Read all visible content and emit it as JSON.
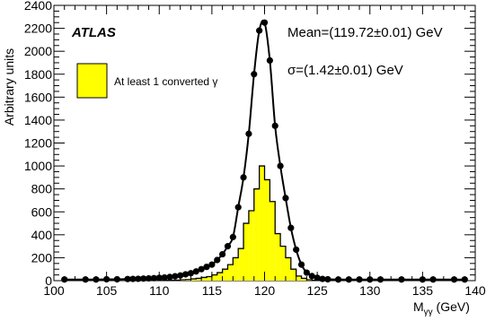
{
  "chart_data": {
    "type": "line",
    "xlabel": "M",
    "xlabel_sub": "γγ",
    "xlabel_unit": " (GeV)",
    "ylabel": "Arbitrary units",
    "xlim": [
      100,
      140
    ],
    "ylim": [
      0,
      2400
    ],
    "x_major_ticks": [
      100,
      105,
      110,
      115,
      120,
      125,
      130,
      135,
      140
    ],
    "x_minor_step": 1,
    "y_major_ticks": [
      0,
      200,
      400,
      600,
      800,
      1000,
      1200,
      1400,
      1600,
      1800,
      2000,
      2200,
      2400
    ],
    "y_minor_step": 50,
    "grid": false,
    "brand": "ATLAS",
    "annotations": [
      "Mean=(119.72±0.01) GeV",
      "σ=(1.42±0.01) GeV"
    ],
    "legend": {
      "label": "At least 1 converted γ",
      "color": "#ffff00",
      "placement": "top-left"
    },
    "series": [
      {
        "style": "filled-histogram",
        "color": "#ffff00",
        "edge_color": "#000000",
        "bin_width": 0.5,
        "x": [
          110,
          110.5,
          111,
          111.5,
          112,
          112.5,
          113,
          113.5,
          114,
          114.5,
          115,
          115.5,
          116,
          116.5,
          117,
          117.5,
          118,
          118.5,
          119,
          119.5,
          120,
          120.5,
          121,
          121.5,
          122,
          122.5,
          123,
          123.5,
          124,
          124.5,
          125
        ],
        "values": [
          2,
          3,
          4,
          5,
          8,
          10,
          15,
          20,
          28,
          35,
          50,
          70,
          100,
          140,
          200,
          280,
          500,
          610,
          800,
          1000,
          880,
          690,
          410,
          300,
          200,
          100,
          40,
          20,
          8,
          4,
          2
        ]
      },
      {
        "style": "markers-with-fit-curve",
        "color": "#000000",
        "x": [
          101,
          103,
          104,
          105,
          106,
          107,
          107.5,
          108,
          108.5,
          109,
          109.5,
          110,
          110.5,
          111,
          111.5,
          112,
          112.5,
          113,
          113.5,
          114,
          114.5,
          115,
          115.5,
          116,
          116.5,
          117,
          117.5,
          118,
          118.5,
          119,
          119.5,
          120,
          120.5,
          121,
          121.5,
          122,
          122.5,
          123,
          123.5,
          124,
          124.5,
          125,
          125.5,
          126,
          127,
          128,
          129,
          130,
          131,
          133,
          135,
          136,
          138,
          139
        ],
        "values": [
          10,
          10,
          10,
          12,
          12,
          14,
          15,
          16,
          18,
          20,
          22,
          25,
          28,
          32,
          38,
          45,
          55,
          65,
          80,
          100,
          120,
          140,
          180,
          230,
          300,
          380,
          640,
          900,
          1280,
          1800,
          2180,
          2250,
          1920,
          1350,
          1000,
          720,
          460,
          270,
          140,
          70,
          40,
          25,
          15,
          12,
          10,
          10,
          10,
          10,
          10,
          10,
          10,
          10,
          10,
          10
        ]
      }
    ]
  }
}
